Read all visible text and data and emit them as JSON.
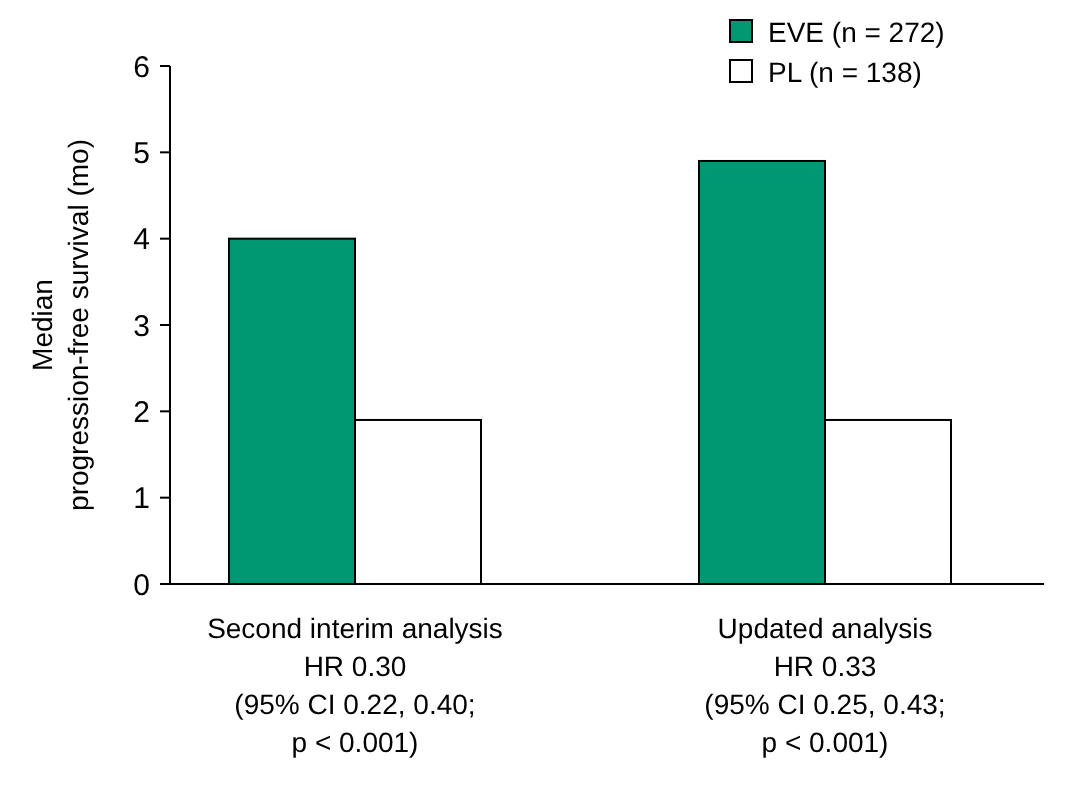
{
  "chart_data": {
    "type": "bar",
    "ylabel": "Median\nprogression-free survival (mo)",
    "categories": [
      "Second interim analysis\nHR 0.30\n(95% CI 0.22, 0.40;\np < 0.001)",
      "Updated analysis\nHR 0.33\n(95% CI 0.25, 0.43;\np < 0.001)"
    ],
    "series": [
      {
        "name": "EVE (n = 272)",
        "color": "#009873",
        "values": [
          4.0,
          4.9
        ]
      },
      {
        "name": "PL (n = 138)",
        "color": "#ffffff",
        "values": [
          1.9,
          1.9
        ]
      }
    ],
    "ylim": [
      0,
      6
    ],
    "yticks": [
      0,
      1,
      2,
      3,
      4,
      5,
      6
    ],
    "grid": false,
    "legend": "top right"
  }
}
